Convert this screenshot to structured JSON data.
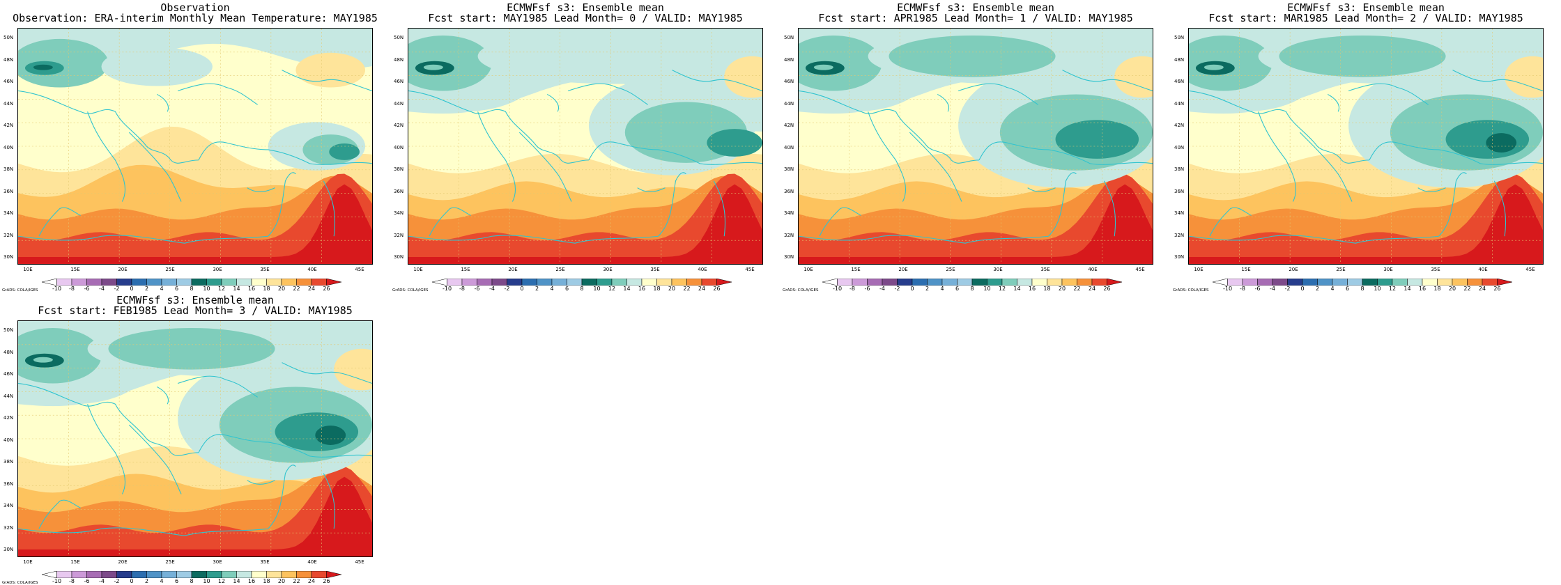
{
  "panels": [
    {
      "id": "obs",
      "title1": "Observation",
      "title2": "Observation: ERA-interim Monthly Mean Temperature: MAY1985",
      "variant": 0
    },
    {
      "id": "lead0",
      "title1": "ECMWFsf s3: Ensemble mean",
      "title2": "Fcst start: MAY1985  Lead Month= 0 / VALID: MAY1985",
      "variant": 1
    },
    {
      "id": "lead1",
      "title1": "ECMWFsf s3: Ensemble mean",
      "title2": "Fcst start: APR1985  Lead Month= 1 / VALID: MAY1985",
      "variant": 2
    },
    {
      "id": "lead2",
      "title1": "ECMWFsf s3: Ensemble mean",
      "title2": "Fcst start: MAR1985  Lead Month= 2 / VALID: MAY1985",
      "variant": 3
    },
    {
      "id": "lead3",
      "title1": "ECMWFsf s3: Ensemble mean",
      "title2": "Fcst start: FEB1985  Lead Month= 3 / VALID: MAY1985",
      "variant": 4
    }
  ],
  "lat_labels": [
    "50N",
    "48N",
    "46N",
    "44N",
    "42N",
    "40N",
    "38N",
    "36N",
    "34N",
    "32N",
    "30N"
  ],
  "lon_labels": [
    "10E",
    "15E",
    "20E",
    "25E",
    "30E",
    "35E",
    "40E",
    "45E"
  ],
  "colorbar": {
    "labels": [
      "-10",
      "-8",
      "-6",
      "-4",
      "-2",
      "0",
      "2",
      "4",
      "6",
      "8",
      "10",
      "12",
      "14",
      "16",
      "18",
      "20",
      "22",
      "24",
      "26"
    ],
    "colors": [
      "#ffffff",
      "#e8c8f0",
      "#cc9ad8",
      "#a76cb4",
      "#7d4a8a",
      "#263c8c",
      "#2c6eb0",
      "#4f93c7",
      "#76b0d8",
      "#9ecbe4",
      "#0b6b60",
      "#2e9c8e",
      "#7fcdbb",
      "#c6e8e2",
      "#ffffcc",
      "#fee49a",
      "#fdc35e",
      "#f6913a",
      "#e8492e",
      "#d7191c"
    ],
    "credit": "GrADS: COLA/IGES"
  },
  "palette": {
    "coast": "#31c4cf",
    "grid": "#e3c970"
  }
}
